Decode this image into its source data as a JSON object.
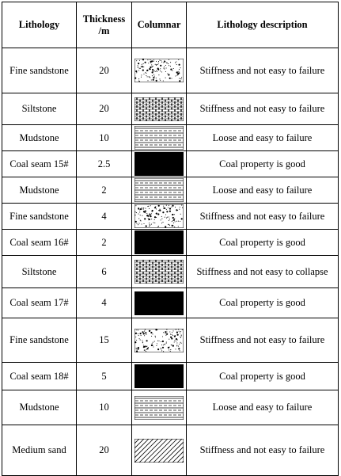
{
  "table": {
    "headers": {
      "lithology": "Lithology",
      "thickness": "Thickness /m",
      "columnar": "Columnar",
      "description": "Lithology description"
    },
    "rows": [
      {
        "lithology": "Fine sandstone",
        "thickness": "20",
        "pattern": "sandstone",
        "description": "Stiffness and not easy to failure"
      },
      {
        "lithology": "Siltstone",
        "thickness": "20",
        "pattern": "siltstone",
        "description": "Stiffness and not easy to failure"
      },
      {
        "lithology": "Mudstone",
        "thickness": "10",
        "pattern": "mudstone",
        "description": "Loose and easy to failure"
      },
      {
        "lithology": "Coal seam 15#",
        "thickness": "2.5",
        "pattern": "coal",
        "description": "Coal property is good"
      },
      {
        "lithology": "Mudstone",
        "thickness": "2",
        "pattern": "mudstone",
        "description": "Loose and easy to failure"
      },
      {
        "lithology": "Fine sandstone",
        "thickness": "4",
        "pattern": "sandstone",
        "description": "Stiffness and not easy to failure"
      },
      {
        "lithology": "Coal seam 16#",
        "thickness": "2",
        "pattern": "coal",
        "description": "Coal property is good"
      },
      {
        "lithology": "Siltstone",
        "thickness": "6",
        "pattern": "siltstone",
        "description": "Stiffness and not easy to collapse"
      },
      {
        "lithology": "Coal seam 17#",
        "thickness": "4",
        "pattern": "coal",
        "description": "Coal property is good"
      },
      {
        "lithology": "Fine sandstone",
        "thickness": "15",
        "pattern": "sandstone",
        "description": "Stiffness and not easy to failure"
      },
      {
        "lithology": "Coal seam 18#",
        "thickness": "5",
        "pattern": "coal",
        "description": "Coal property is good"
      },
      {
        "lithology": "Mudstone",
        "thickness": "10",
        "pattern": "mudstone",
        "description": "Loose and easy to failure"
      },
      {
        "lithology": "Medium sand",
        "thickness": "20",
        "pattern": "medium-sand",
        "description": "Stiffness and not easy to failure"
      }
    ]
  }
}
